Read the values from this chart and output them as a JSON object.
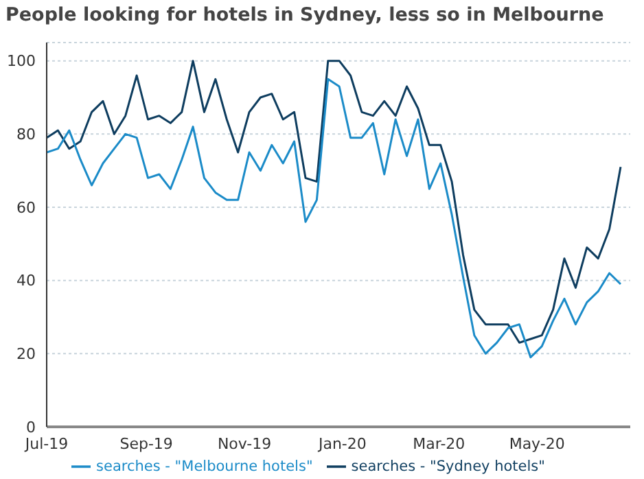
{
  "chart_data": {
    "type": "line",
    "title": "People looking for hotels in Sydney, less so in Melbourne",
    "x": [
      "2019-07-01",
      "2019-07-08",
      "2019-07-15",
      "2019-07-22",
      "2019-07-29",
      "2019-08-05",
      "2019-08-12",
      "2019-08-19",
      "2019-08-26",
      "2019-09-02",
      "2019-09-09",
      "2019-09-16",
      "2019-09-23",
      "2019-09-30",
      "2019-10-07",
      "2019-10-14",
      "2019-10-21",
      "2019-10-28",
      "2019-11-04",
      "2019-11-11",
      "2019-11-18",
      "2019-11-25",
      "2019-12-02",
      "2019-12-09",
      "2019-12-16",
      "2019-12-23",
      "2019-12-30",
      "2020-01-06",
      "2020-01-13",
      "2020-01-20",
      "2020-01-27",
      "2020-02-03",
      "2020-02-10",
      "2020-02-17",
      "2020-02-24",
      "2020-03-02",
      "2020-03-09",
      "2020-03-16",
      "2020-03-23",
      "2020-03-30",
      "2020-04-06",
      "2020-04-13",
      "2020-04-20",
      "2020-04-27",
      "2020-05-04",
      "2020-05-11",
      "2020-05-18",
      "2020-05-25",
      "2020-06-01",
      "2020-06-08",
      "2020-06-15",
      "2020-06-22"
    ],
    "series": [
      {
        "name": "searches - \"Sydney hotels\"",
        "color": "#0e3d5f",
        "values": [
          79,
          81,
          76,
          78,
          86,
          89,
          80,
          85,
          96,
          84,
          85,
          83,
          86,
          100,
          86,
          95,
          84,
          75,
          86,
          90,
          91,
          84,
          86,
          68,
          67,
          100,
          100,
          96,
          86,
          85,
          89,
          85,
          93,
          87,
          77,
          77,
          67,
          47,
          32,
          28,
          28,
          28,
          23,
          24,
          25,
          32,
          46,
          38,
          49,
          46,
          54,
          71
        ]
      },
      {
        "name": "searches - \"Melbourne hotels\"",
        "color": "#1b8bc8",
        "values": [
          75,
          76,
          81,
          73,
          66,
          72,
          76,
          80,
          79,
          68,
          69,
          65,
          73,
          82,
          68,
          64,
          62,
          62,
          75,
          70,
          77,
          72,
          78,
          56,
          62,
          95,
          93,
          79,
          79,
          83,
          69,
          84,
          74,
          84,
          65,
          72,
          58,
          41,
          25,
          20,
          23,
          27,
          28,
          19,
          22,
          29,
          35,
          28,
          34,
          37,
          42,
          39
        ]
      }
    ],
    "xlim": [
      "2019-07-01",
      "2020-06-28"
    ],
    "xticks": [
      {
        "value": "2019-07-01",
        "label": "Jul-19"
      },
      {
        "value": "2019-09-01",
        "label": "Sep-19"
      },
      {
        "value": "2019-11-01",
        "label": "Nov-19"
      },
      {
        "value": "2020-01-01",
        "label": "Jan-20"
      },
      {
        "value": "2020-03-01",
        "label": "Mar-20"
      },
      {
        "value": "2020-05-01",
        "label": "May-20"
      }
    ],
    "ylim": [
      0,
      105
    ],
    "yticks": [
      0,
      20,
      40,
      60,
      80,
      100
    ],
    "grid": "y",
    "legend": "bottom",
    "marker": "none",
    "line_style": "solid"
  }
}
